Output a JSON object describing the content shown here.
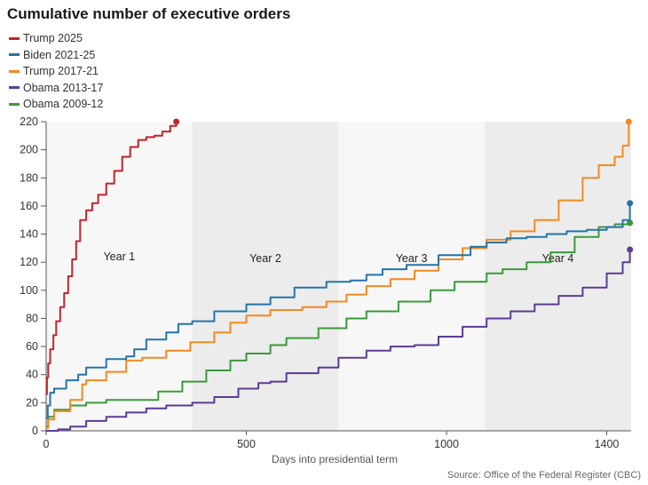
{
  "title": "Cumulative number of executive orders",
  "source": "Source: Office of the Federal Register (CBC)",
  "chart_data": {
    "type": "line",
    "title": "Cumulative number of executive orders",
    "xlabel": "Days into presidential term",
    "ylabel": "",
    "xlim": [
      0,
      1461
    ],
    "ylim": [
      0,
      220
    ],
    "xticks": [
      0,
      500,
      1000,
      1400
    ],
    "yticks": [
      0,
      20,
      40,
      60,
      80,
      100,
      120,
      140,
      160,
      180,
      200,
      220
    ],
    "grid": false,
    "legend_position": "top-left",
    "bands": [
      {
        "label": "Year 1",
        "start": 0,
        "end": 365,
        "color": "#f7f7f7"
      },
      {
        "label": "Year 2",
        "start": 365,
        "end": 730,
        "color": "#ececec"
      },
      {
        "label": "Year 3",
        "start": 730,
        "end": 1095,
        "color": "#f7f7f7"
      },
      {
        "label": "Year 4",
        "start": 1095,
        "end": 1461,
        "color": "#ececec"
      }
    ],
    "series": [
      {
        "name": "Trump 2025",
        "color": "#c0242c",
        "x": [
          0,
          2,
          5,
          10,
          18,
          25,
          35,
          45,
          55,
          65,
          75,
          85,
          100,
          115,
          130,
          150,
          170,
          190,
          210,
          230,
          250,
          270,
          290,
          310,
          325
        ],
        "y": [
          26,
          38,
          48,
          58,
          68,
          78,
          88,
          98,
          110,
          122,
          135,
          150,
          157,
          162,
          168,
          176,
          185,
          195,
          202,
          207,
          209,
          210,
          213,
          217,
          220
        ]
      },
      {
        "name": "Biden 2021-25",
        "color": "#2574a9",
        "x": [
          0,
          4,
          10,
          20,
          50,
          80,
          100,
          150,
          200,
          220,
          250,
          300,
          330,
          365,
          420,
          500,
          560,
          620,
          700,
          760,
          800,
          840,
          900,
          980,
          1060,
          1100,
          1150,
          1200,
          1250,
          1300,
          1350,
          1400,
          1440,
          1458
        ],
        "y": [
          9,
          18,
          27,
          30,
          36,
          40,
          45,
          51,
          53,
          58,
          65,
          70,
          76,
          78,
          85,
          90,
          95,
          102,
          106,
          107,
          111,
          115,
          118,
          125,
          131,
          134,
          137,
          138,
          140,
          142,
          143,
          145,
          150,
          162
        ]
      },
      {
        "name": "Trump 2017-21",
        "color": "#f5881f",
        "x": [
          0,
          5,
          20,
          60,
          90,
          100,
          150,
          200,
          240,
          300,
          360,
          420,
          460,
          500,
          560,
          640,
          700,
          750,
          800,
          860,
          920,
          980,
          1040,
          1100,
          1160,
          1220,
          1280,
          1340,
          1380,
          1420,
          1440,
          1455
        ],
        "y": [
          2,
          8,
          14,
          22,
          33,
          36,
          42,
          50,
          52,
          57,
          63,
          70,
          77,
          82,
          86,
          88,
          92,
          97,
          103,
          108,
          114,
          122,
          130,
          136,
          142,
          150,
          164,
          180,
          189,
          195,
          203,
          220
        ]
      },
      {
        "name": "Obama 2013-17",
        "color": "#5b3b95",
        "x": [
          0,
          30,
          60,
          100,
          150,
          200,
          250,
          300,
          365,
          420,
          480,
          530,
          560,
          600,
          680,
          730,
          800,
          860,
          920,
          980,
          1040,
          1100,
          1160,
          1220,
          1280,
          1340,
          1400,
          1440,
          1458
        ],
        "y": [
          0,
          1,
          3,
          7,
          10,
          13,
          16,
          18,
          20,
          24,
          30,
          34,
          35,
          41,
          45,
          52,
          57,
          60,
          61,
          67,
          74,
          80,
          85,
          90,
          96,
          102,
          112,
          120,
          129
        ]
      },
      {
        "name": "Obama 2009-12",
        "color": "#3a9a3a",
        "x": [
          0,
          5,
          20,
          60,
          100,
          150,
          200,
          250,
          280,
          340,
          400,
          460,
          500,
          560,
          600,
          680,
          750,
          800,
          880,
          960,
          1020,
          1100,
          1140,
          1200,
          1260,
          1320,
          1380,
          1420,
          1458
        ],
        "y": [
          3,
          10,
          15,
          18,
          20,
          22,
          22,
          22,
          28,
          35,
          43,
          50,
          55,
          61,
          66,
          73,
          80,
          85,
          92,
          100,
          106,
          112,
          115,
          120,
          127,
          138,
          145,
          147,
          148
        ]
      }
    ]
  }
}
